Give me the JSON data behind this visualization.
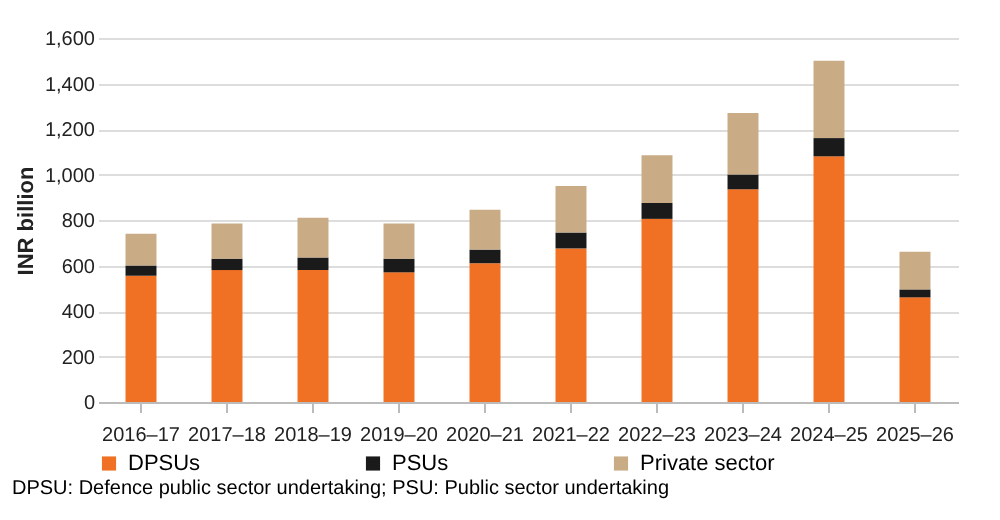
{
  "chart_data": {
    "type": "bar",
    "stacked": true,
    "ylabel": "INR billion",
    "categories": [
      "2016–17",
      "2017–18",
      "2018–19",
      "2019–20",
      "2020–21",
      "2021–22",
      "2022–23",
      "2023–24",
      "2024–25",
      "2025–26"
    ],
    "series": [
      {
        "name": "DPSUs",
        "color": "#f07024",
        "values": [
          555,
          580,
          580,
          570,
          610,
          675,
          805,
          935,
          1080,
          460
        ]
      },
      {
        "name": "PSUs",
        "color": "#1a1a1a",
        "values": [
          45,
          50,
          55,
          60,
          60,
          70,
          70,
          65,
          80,
          35
        ]
      },
      {
        "name": "Private sector",
        "color": "#c9ab86",
        "values": [
          140,
          155,
          175,
          155,
          175,
          205,
          210,
          270,
          340,
          165
        ]
      }
    ],
    "ylim": [
      0,
      1600
    ],
    "yticks": [
      {
        "value": 0,
        "label": "0"
      },
      {
        "value": 200,
        "label": "200"
      },
      {
        "value": 400,
        "label": "400"
      },
      {
        "value": 600,
        "label": "600"
      },
      {
        "value": 800,
        "label": "800"
      },
      {
        "value": 1000,
        "label": "1,000"
      },
      {
        "value": 1200,
        "label": "1,200"
      },
      {
        "value": 1400,
        "label": "1,400"
      },
      {
        "value": 1600,
        "label": "1,600"
      }
    ],
    "grid": "y",
    "legend": "bottom",
    "annotations": [
      "DPSU:  Defence public sector undertaking; PSU: Public sector undertaking"
    ]
  }
}
